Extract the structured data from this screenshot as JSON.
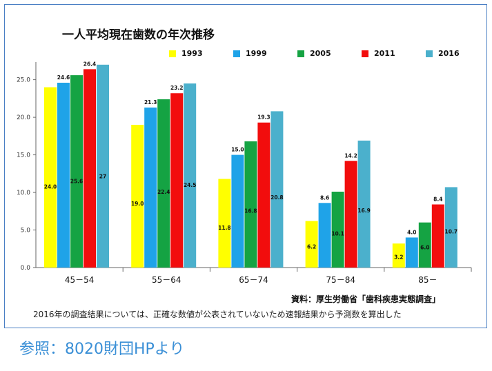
{
  "title": "一人平均現在歯数の年次推移",
  "source": "資料：厚生労働省「歯科疾患実態調査」",
  "footnote": "2016年の調査結果については、正確な数値が公表されていないため速報結果から予測数を算出した",
  "reference": "参照：8020財団HPより",
  "colors": {
    "1993": "#ffff00",
    "1999": "#1fa3e8",
    "2005": "#15a343",
    "2011": "#f20d0d",
    "2016": "#4bb0cc"
  },
  "chart_data": {
    "type": "bar",
    "title": "一人平均現在歯数の年次推移",
    "categories": [
      "45－54",
      "55－64",
      "65－74",
      "75－84",
      "85－"
    ],
    "y_ticks": [
      "0.0",
      "5.0",
      "10.0",
      "15.0",
      "20.0",
      "25.0"
    ],
    "ylim": [
      0,
      26.8
    ],
    "grid": false,
    "legend_position": "top",
    "series": [
      {
        "name": "1993",
        "values": [
          24.0,
          19.0,
          11.8,
          6.2,
          3.2
        ],
        "labels": [
          "24.0",
          "19.0",
          "11.8",
          "6.2",
          "3.2"
        ],
        "label_pos": "inside"
      },
      {
        "name": "1999",
        "values": [
          24.6,
          21.3,
          15.0,
          8.6,
          4.0
        ],
        "labels": [
          "24.6",
          "21.3",
          "15.0",
          "8.6",
          "4.0"
        ],
        "label_pos": "top"
      },
      {
        "name": "2005",
        "values": [
          25.6,
          22.4,
          16.8,
          10.1,
          6.0
        ],
        "labels": [
          "25.6",
          "22.4",
          "16.8",
          "10.1",
          "6.0"
        ],
        "label_pos": "inside"
      },
      {
        "name": "2011",
        "values": [
          26.4,
          23.2,
          19.3,
          14.2,
          8.4
        ],
        "labels": [
          "26.4",
          "23.2",
          "19.3",
          "14.2",
          "8.4"
        ],
        "label_pos": "top"
      },
      {
        "name": "2016",
        "values": [
          27.0,
          24.5,
          20.8,
          16.9,
          10.7
        ],
        "labels": [
          "27",
          "24.5",
          "20.8",
          "16.9",
          "10.7"
        ],
        "label_pos": "inside"
      }
    ]
  }
}
